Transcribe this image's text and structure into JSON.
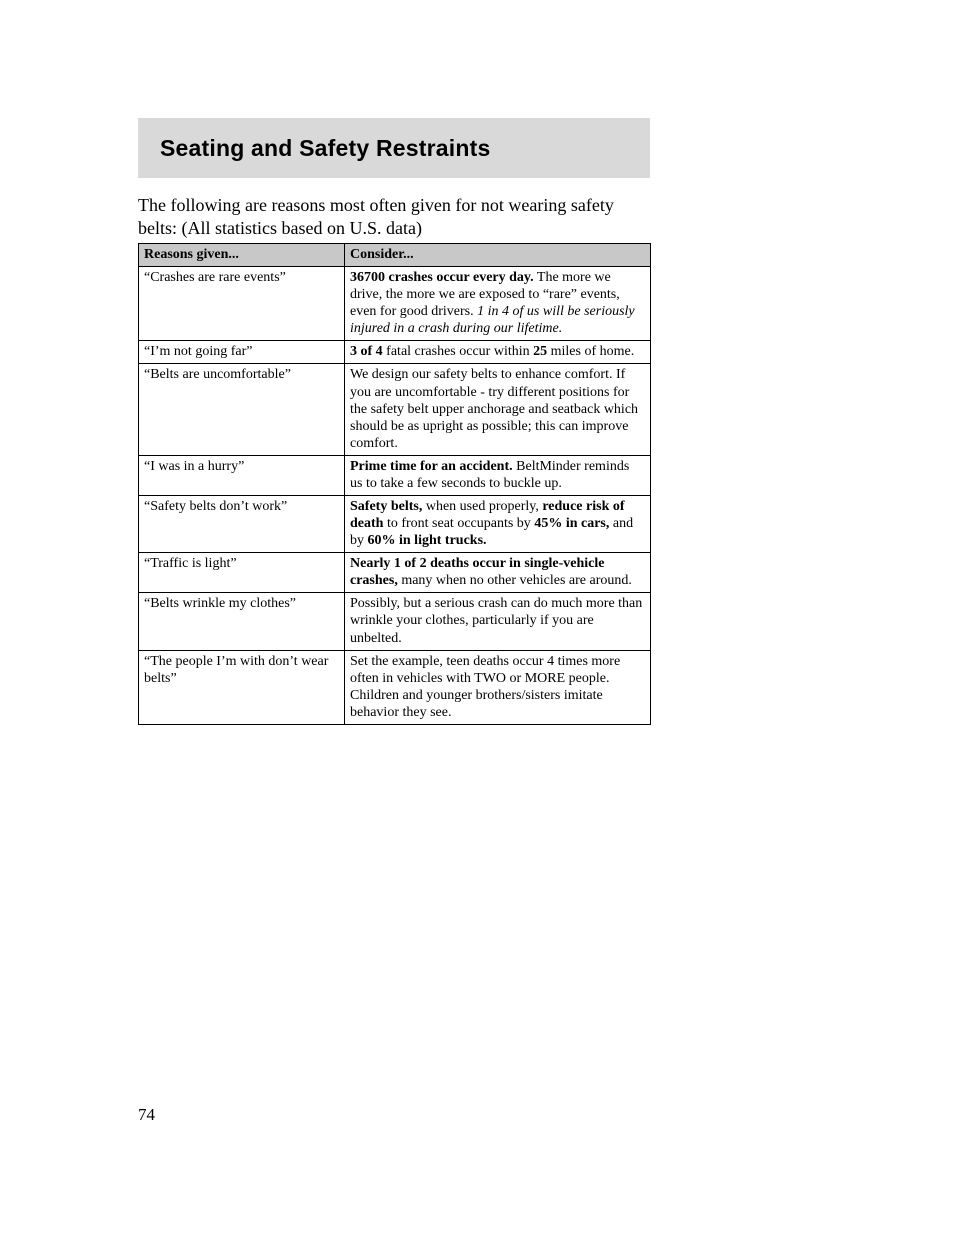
{
  "heading": "Seating and Safety Restraints",
  "intro": "The following are reasons most often given for not wearing safety belts: (All statistics based on U.S. data)",
  "table": {
    "header": {
      "col1": "Reasons given...",
      "col2": "Consider..."
    },
    "rows": [
      {
        "reason": "“Crashes are rare events”",
        "consider_parts": [
          {
            "text": "36700 crashes occur every day.",
            "style": "b"
          },
          {
            "text": " The more we drive, the more we are exposed to “rare” events, even for good drivers. ",
            "style": ""
          },
          {
            "text": "1 in 4 of us will be seriously injured in a crash during our lifetime.",
            "style": "i"
          }
        ]
      },
      {
        "reason": "“I’m not going far”",
        "consider_parts": [
          {
            "text": "3 of 4",
            "style": "b"
          },
          {
            "text": " fatal crashes occur within ",
            "style": ""
          },
          {
            "text": "25",
            "style": "b"
          },
          {
            "text": " miles of home.",
            "style": ""
          }
        ]
      },
      {
        "reason": "“Belts are uncomfortable”",
        "consider_parts": [
          {
            "text": "We design our safety belts to enhance comfort. If you are uncomfortable - try different positions for the safety belt upper anchorage and seatback which should be as upright as possible; this can improve comfort.",
            "style": ""
          }
        ]
      },
      {
        "reason": "“I was in a hurry”",
        "consider_parts": [
          {
            "text": "Prime time for an accident.",
            "style": "b"
          },
          {
            "text": " BeltMinder reminds us to take a few seconds to buckle up.",
            "style": ""
          }
        ]
      },
      {
        "reason": "“Safety belts don’t work”",
        "consider_parts": [
          {
            "text": "Safety belts,",
            "style": "b"
          },
          {
            "text": " when used properly, ",
            "style": ""
          },
          {
            "text": "reduce risk of death",
            "style": "b"
          },
          {
            "text": " to front seat occupants by ",
            "style": ""
          },
          {
            "text": "45% in cars,",
            "style": "b"
          },
          {
            "text": " and by ",
            "style": ""
          },
          {
            "text": "60% in light trucks.",
            "style": "b"
          }
        ]
      },
      {
        "reason": "“Traffic is light”",
        "consider_parts": [
          {
            "text": "Nearly 1 of 2 deaths occur in single-vehicle crashes,",
            "style": "b"
          },
          {
            "text": " many when no other vehicles are around.",
            "style": ""
          }
        ]
      },
      {
        "reason": "“Belts wrinkle my clothes”",
        "consider_parts": [
          {
            "text": "Possibly, but a serious crash can do much more than wrinkle your clothes, particularly if you are unbelted.",
            "style": ""
          }
        ]
      },
      {
        "reason": "“The people I’m with don’t wear belts”",
        "consider_parts": [
          {
            "text": "Set the example, teen deaths occur 4 times more often in vehicles with TWO or MORE people. Children and younger brothers/sisters imitate behavior they see.",
            "style": ""
          }
        ]
      }
    ]
  },
  "page_number": "74"
}
